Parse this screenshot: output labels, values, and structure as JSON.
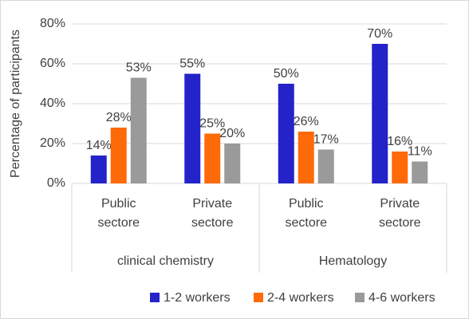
{
  "chart_data": {
    "type": "bar",
    "y_label": "Percentage of participants",
    "categories": [
      "Public sectore",
      "Private sectore",
      "Public sectore",
      "Private sectore"
    ],
    "groups": [
      "clinical chemistry",
      "Hematology"
    ],
    "series": [
      {
        "name": "1-2 workers",
        "color": "#2323c9",
        "values": [
          14,
          55,
          50,
          70
        ],
        "value_labels": [
          "14%",
          "55%",
          "50%",
          "70%"
        ]
      },
      {
        "name": "2-4 workers",
        "color": "#ff6a08",
        "values": [
          28,
          25,
          26,
          16
        ],
        "value_labels": [
          "28%",
          "25%",
          "26%",
          "16%"
        ]
      },
      {
        "name": "4-6 workers",
        "color": "#9a9a9a",
        "values": [
          53,
          20,
          17,
          11
        ],
        "value_labels": [
          "53%",
          "20%",
          "17%",
          "11%"
        ]
      }
    ],
    "ylim": [
      0,
      80
    ],
    "yticks": [
      {
        "value": 0,
        "label": "0%"
      },
      {
        "value": 20,
        "label": "20%"
      },
      {
        "value": 40,
        "label": "40%"
      },
      {
        "value": 60,
        "label": "60%"
      },
      {
        "value": 80,
        "label": "80%"
      }
    ],
    "grid": true,
    "legend": "bottom"
  }
}
